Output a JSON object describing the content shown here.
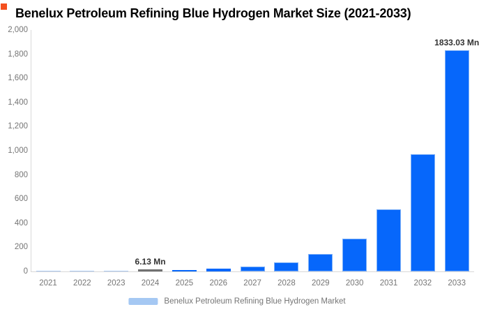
{
  "title": "Benelux Petroleum Refining Blue Hydrogen Market Size (2021-2033)",
  "legend": {
    "label": "Benelux Petroleum Refining Blue Hydrogen Market",
    "swatch_color": "#a5c8f3"
  },
  "colors": {
    "bar_fill": "#0667fb",
    "bar_stroke": "#7fb1f7",
    "tiny_bar_fill": "#aecdf6",
    "highlight_bar_fill": "#707070",
    "axis_line": "#d8d8d8",
    "tick_text": "#757575",
    "annotation_text": "#333333",
    "title_text": "#000000",
    "brand_mark": "#f4501e"
  },
  "y_axis": {
    "tick_labels": [
      "0",
      "200",
      "400",
      "600",
      "800",
      "1,000",
      "1,200",
      "1,400",
      "1,600",
      "1,800",
      "2,000"
    ]
  },
  "chart_data": {
    "type": "bar",
    "title": "Benelux Petroleum Refining Blue Hydrogen Market Size (2021-2033)",
    "categories": [
      "2021",
      "2022",
      "2023",
      "2024",
      "2025",
      "2026",
      "2027",
      "2028",
      "2029",
      "2030",
      "2031",
      "2032",
      "2033"
    ],
    "values": [
      0.92,
      1.73,
      3.25,
      6.13,
      11.55,
      21.76,
      40.99,
      77.23,
      145.5,
      274.12,
      516.43,
      972.95,
      1833.03
    ],
    "unit": "Mn",
    "xlabel": "",
    "ylabel": "",
    "ylim": [
      0,
      2000
    ],
    "ytick_step": 200,
    "grid": false,
    "legend_position": "bottom",
    "highlight_category": "2024",
    "annotations": [
      {
        "category": "2024",
        "text": "6.13 Mn"
      },
      {
        "category": "2033",
        "text": "1833.03 Mn"
      }
    ]
  }
}
